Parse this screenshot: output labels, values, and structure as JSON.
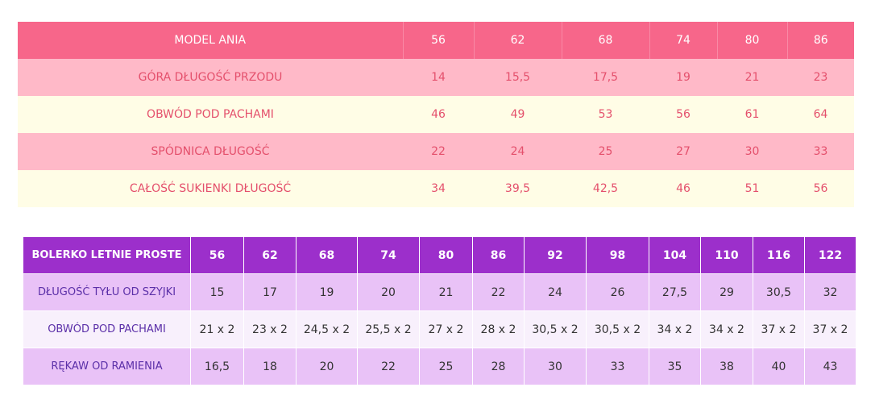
{
  "table1": {
    "header": [
      "MODEL ANIA",
      "56",
      "62",
      "68",
      "74",
      "80",
      "86"
    ],
    "rows": [
      [
        "GÓRA DŁUGOŚĆ PRZODU",
        "14",
        "15,5",
        "17,5",
        "19",
        "21",
        "23"
      ],
      [
        "OBWÓD POD PACHAMI",
        "46",
        "49",
        "53",
        "56",
        "61",
        "64"
      ],
      [
        "SPÓDNICA DŁUGOŚĆ",
        "22",
        "24",
        "25",
        "27",
        "30",
        "33"
      ],
      [
        "CAŁOŚĆ SUKIENKI DŁUGOŚĆ",
        "34",
        "39,5",
        "42,5",
        "46",
        "51",
        "56"
      ]
    ]
  },
  "table2": {
    "header": [
      "BOLERKO LETNIE PROSTE",
      "56",
      "62",
      "68",
      "74",
      "80",
      "86",
      "92",
      "98",
      "104",
      "110",
      "116",
      "122"
    ],
    "rows": [
      [
        "DŁUGOŚĆ TYŁU OD SZYJKI",
        "15",
        "17",
        "19",
        "20",
        "21",
        "22",
        "24",
        "26",
        "27,5",
        "29",
        "30,5",
        "32"
      ],
      [
        "OBWÓD POD PACHAMI",
        "21 x 2",
        "23 x 2",
        "24,5 x 2",
        "25,5 x 2",
        "27 x 2",
        "28 x 2",
        "30,5 x 2",
        "30,5 x 2",
        "34 x 2",
        "34 x 2",
        "37 x 2",
        "37 x 2"
      ],
      [
        "RĘKAW OD RAMIENIA",
        "16,5",
        "18",
        "20",
        "22",
        "25",
        "28",
        "30",
        "33",
        "35",
        "38",
        "40",
        "43"
      ]
    ]
  }
}
